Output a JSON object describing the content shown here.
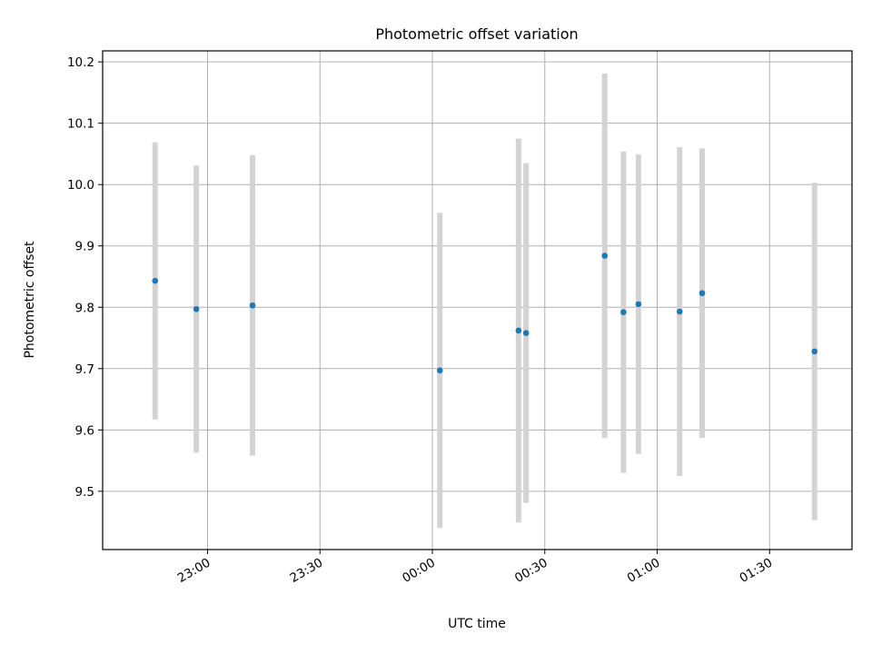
{
  "chart_data": {
    "type": "scatter",
    "title": "Photometric offset variation",
    "xlabel": "UTC time",
    "ylabel": "Photometric offset",
    "x_ticks": [
      "23:00",
      "23:30",
      "00:00",
      "00:30",
      "01:00",
      "01:30"
    ],
    "y_ticks": [
      "9.5",
      "9.6",
      "9.7",
      "9.8",
      "9.9",
      "10.0",
      "10.1",
      "10.2"
    ],
    "xlim": [
      "22:32",
      "01:52"
    ],
    "ylim": [
      9.405,
      10.218
    ],
    "grid": true,
    "marker_color": "#1f77b4",
    "errorbar_color": "#d3d3d3",
    "points": [
      {
        "time": "22:46",
        "y": 9.843,
        "err": 0.226
      },
      {
        "time": "22:57",
        "y": 9.797,
        "err": 0.234
      },
      {
        "time": "23:12",
        "y": 9.803,
        "err": 0.245
      },
      {
        "time": "00:02",
        "y": 9.697,
        "err": 0.257
      },
      {
        "time": "00:23",
        "y": 9.762,
        "err": 0.313
      },
      {
        "time": "00:25",
        "y": 9.758,
        "err": 0.277
      },
      {
        "time": "00:46",
        "y": 9.884,
        "err": 0.297
      },
      {
        "time": "00:51",
        "y": 9.792,
        "err": 0.262
      },
      {
        "time": "00:55",
        "y": 9.805,
        "err": 0.244
      },
      {
        "time": "01:06",
        "y": 9.793,
        "err": 0.268
      },
      {
        "time": "01:12",
        "y": 9.823,
        "err": 0.236
      },
      {
        "time": "01:42",
        "y": 9.728,
        "err": 0.275
      }
    ]
  }
}
